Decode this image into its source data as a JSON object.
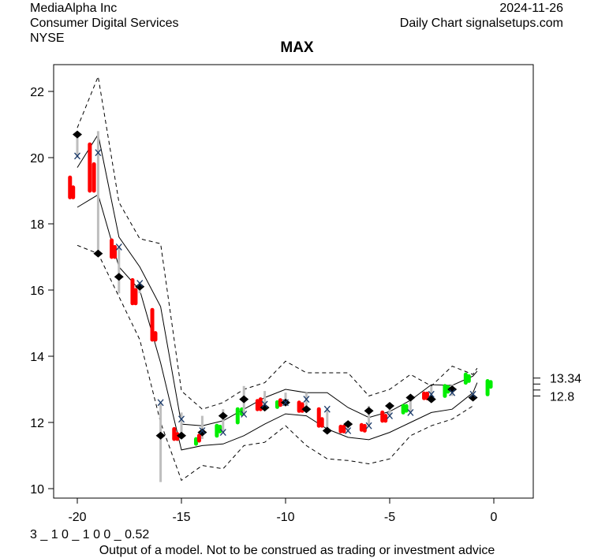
{
  "header": {
    "company": "MediaAlpha Inc",
    "sector": "Consumer Digital Services",
    "exchange": "NYSE",
    "date": "2024-11-26",
    "source": "Daily Chart signalsetups.com"
  },
  "footer": {
    "params": "3 _ 1 0 _ 1 0 0 _ 0.52",
    "disclaimer": "Output of a model. Not to be construed as trading or investment advice"
  },
  "chart_data": {
    "type": "line",
    "title": "MAX",
    "xlim": [
      -20.8,
      1.9
    ],
    "ylim": [
      9.7,
      23.2
    ],
    "xticks": [
      -20,
      -15,
      -10,
      -5,
      0
    ],
    "yticks": [
      10,
      12,
      14,
      16,
      18,
      20,
      22
    ],
    "right_labels": [
      "13.34",
      "12.8"
    ],
    "right_label_values": [
      13.34,
      12.8
    ],
    "right_tick_values": [
      13.34,
      13.16,
      12.98,
      12.8
    ],
    "colors": {
      "up": "#00ee00",
      "down": "#ff0000",
      "range": "#bebebe",
      "band": "#000000"
    },
    "bands": {
      "x": [
        -20,
        -19,
        -18,
        -17,
        -16,
        -15,
        -14,
        -13,
        -12,
        -11,
        -10,
        -9,
        -8,
        -7,
        -6,
        -5,
        -4,
        -3,
        -2,
        -1
      ],
      "upper_outer": [
        20.9,
        22.45,
        18.65,
        17.55,
        17.4,
        12.95,
        12.4,
        12.6,
        13.0,
        13.2,
        13.85,
        13.5,
        13.5,
        13.5,
        12.8,
        13.0,
        13.45,
        13.1,
        13.7,
        13.45
      ],
      "upper": [
        19.7,
        20.7,
        17.6,
        16.7,
        15.5,
        11.95,
        11.9,
        12.05,
        12.4,
        12.75,
        13.0,
        12.9,
        12.9,
        12.45,
        12.15,
        12.33,
        12.67,
        13.14,
        13.12,
        13.4
      ],
      "lower": [
        18.5,
        18.88,
        16.7,
        16.0,
        13.8,
        11.17,
        11.3,
        11.35,
        11.6,
        11.95,
        12.26,
        12.2,
        11.8,
        11.55,
        11.48,
        11.7,
        12.0,
        12.3,
        12.4,
        12.9
      ],
      "lower_outer": [
        17.35,
        17.1,
        15.8,
        14.5,
        12.0,
        10.25,
        10.7,
        10.6,
        11.3,
        11.4,
        11.9,
        11.3,
        10.9,
        10.85,
        10.75,
        10.9,
        11.6,
        11.9,
        12.1,
        12.5
      ],
      "extra_upper_outer_end": [
        -0.8,
        13.64
      ],
      "extra_upper_end": [
        -0.8,
        13.55
      ],
      "extra_lower_end": [
        -0.8,
        13.2
      ]
    },
    "signals": [
      {
        "x": -20,
        "hi": 20.7,
        "lo": 20.0,
        "diamond": 20.7,
        "mark": 20.05
      },
      {
        "x": -19,
        "hi": 20.8,
        "lo": 17.1,
        "diamond": 17.1,
        "mark": 20.15
      },
      {
        "x": -18,
        "hi": 17.3,
        "lo": 15.9,
        "diamond": 16.4,
        "mark": 17.3
      },
      {
        "x": -17,
        "hi": 16.25,
        "lo": 15.9,
        "diamond": 16.1,
        "mark": 16.2
      },
      {
        "x": -16,
        "hi": 12.6,
        "lo": 10.2,
        "diamond": 11.6,
        "mark": 12.6
      },
      {
        "x": -15,
        "hi": 12.3,
        "lo": 11.6,
        "diamond": 11.6,
        "mark": 12.1
      },
      {
        "x": -14,
        "hi": 12.2,
        "lo": 11.5,
        "diamond": 11.7,
        "mark": 11.75
      },
      {
        "x": -13,
        "hi": 12.4,
        "lo": 11.7,
        "diamond": 12.2,
        "mark": 11.7
      },
      {
        "x": -12,
        "hi": 13.1,
        "lo": 12.2,
        "diamond": 12.7,
        "mark": 12.25
      },
      {
        "x": -11,
        "hi": 12.95,
        "lo": 12.5,
        "diamond": 12.45,
        "mark": 12.55
      },
      {
        "x": -10,
        "hi": 12.9,
        "lo": 12.5,
        "diamond": 12.6,
        "mark": 12.6
      },
      {
        "x": -9,
        "hi": 12.9,
        "lo": 12.4,
        "diamond": 12.4,
        "mark": 12.7
      },
      {
        "x": -8,
        "hi": 12.4,
        "lo": 11.7,
        "diamond": 11.75,
        "mark": 12.4
      },
      {
        "x": -7,
        "hi": 12.0,
        "lo": 11.7,
        "diamond": 11.95,
        "mark": 11.75
      },
      {
        "x": -6,
        "hi": 12.5,
        "lo": 11.9,
        "diamond": 12.35,
        "mark": 11.9
      },
      {
        "x": -5,
        "hi": 12.6,
        "lo": 12.2,
        "diamond": 12.5,
        "mark": 12.2
      },
      {
        "x": -4,
        "hi": 12.85,
        "lo": 12.3,
        "diamond": 12.75,
        "mark": 12.3
      },
      {
        "x": -3,
        "hi": 13.1,
        "lo": 12.7,
        "diamond": 12.7,
        "mark": 12.85
      },
      {
        "x": -2,
        "hi": 13.15,
        "lo": 12.8,
        "diamond": 13.0,
        "mark": 12.9
      },
      {
        "x": -1,
        "hi": 12.9,
        "lo": 12.7,
        "diamond": 12.75,
        "mark": 12.85
      }
    ],
    "candles": [
      {
        "x": -20.35,
        "hi": 19.4,
        "lo": 18.8,
        "dir": "down"
      },
      {
        "x": -20.2,
        "hi": 19.1,
        "lo": 18.8,
        "dir": "down"
      },
      {
        "x": -19.4,
        "hi": 20.4,
        "lo": 19.0,
        "dir": "down"
      },
      {
        "x": -19.2,
        "hi": 19.8,
        "lo": 19.0,
        "dir": "down"
      },
      {
        "x": -18.35,
        "hi": 17.5,
        "lo": 17.0,
        "dir": "down"
      },
      {
        "x": -18.2,
        "hi": 17.3,
        "lo": 17.0,
        "dir": "down"
      },
      {
        "x": -17.35,
        "hi": 16.3,
        "lo": 15.6,
        "dir": "down"
      },
      {
        "x": -17.2,
        "hi": 16.0,
        "lo": 15.6,
        "dir": "down"
      },
      {
        "x": -16.4,
        "hi": 15.4,
        "lo": 14.5,
        "dir": "down"
      },
      {
        "x": -16.25,
        "hi": 14.7,
        "lo": 14.5,
        "dir": "down"
      },
      {
        "x": -15.35,
        "hi": 11.8,
        "lo": 11.5,
        "dir": "down"
      },
      {
        "x": -15.2,
        "hi": 11.65,
        "lo": 11.5,
        "dir": "down"
      },
      {
        "x": -14.3,
        "hi": 11.45,
        "lo": 11.4,
        "dir": "up"
      },
      {
        "x": -14.15,
        "hi": 11.6,
        "lo": 11.45,
        "dir": "down"
      },
      {
        "x": -13.3,
        "hi": 11.9,
        "lo": 11.6,
        "dir": "up"
      },
      {
        "x": -13.15,
        "hi": 11.85,
        "lo": 11.75,
        "dir": "up"
      },
      {
        "x": -12.3,
        "hi": 12.4,
        "lo": 12.0,
        "dir": "up"
      },
      {
        "x": -12.1,
        "hi": 12.35,
        "lo": 12.3,
        "dir": "up"
      },
      {
        "x": -11.35,
        "hi": 12.65,
        "lo": 12.4,
        "dir": "down"
      },
      {
        "x": -11.2,
        "hi": 12.7,
        "lo": 12.4,
        "dir": "down"
      },
      {
        "x": -10.4,
        "hi": 12.56,
        "lo": 12.52,
        "dir": "up"
      },
      {
        "x": -10.25,
        "hi": 12.65,
        "lo": 12.55,
        "dir": "down"
      },
      {
        "x": -9.35,
        "hi": 12.6,
        "lo": 12.35,
        "dir": "down"
      },
      {
        "x": -9.2,
        "hi": 12.55,
        "lo": 12.35,
        "dir": "down"
      },
      {
        "x": -8.4,
        "hi": 12.4,
        "lo": 11.9,
        "dir": "down"
      },
      {
        "x": -8.25,
        "hi": 12.1,
        "lo": 11.9,
        "dir": "down"
      },
      {
        "x": -7.35,
        "hi": 11.85,
        "lo": 11.75,
        "dir": "down"
      },
      {
        "x": -7.2,
        "hi": 11.85,
        "lo": 11.75,
        "dir": "down"
      },
      {
        "x": -6.35,
        "hi": 11.9,
        "lo": 11.8,
        "dir": "down"
      },
      {
        "x": -6.2,
        "hi": 11.85,
        "lo": 11.8,
        "dir": "down"
      },
      {
        "x": -5.35,
        "hi": 12.3,
        "lo": 12.05,
        "dir": "down"
      },
      {
        "x": -5.2,
        "hi": 12.2,
        "lo": 12.05,
        "dir": "down"
      },
      {
        "x": -4.35,
        "hi": 12.5,
        "lo": 12.3,
        "dir": "up"
      },
      {
        "x": -4.2,
        "hi": 12.45,
        "lo": 12.4,
        "dir": "up"
      },
      {
        "x": -3.35,
        "hi": 12.83,
        "lo": 12.78,
        "dir": "down"
      },
      {
        "x": -3.2,
        "hi": 12.85,
        "lo": 12.75,
        "dir": "down"
      },
      {
        "x": -2.35,
        "hi": 13.1,
        "lo": 12.8,
        "dir": "up"
      },
      {
        "x": -2.2,
        "hi": 13.05,
        "lo": 12.95,
        "dir": "up"
      },
      {
        "x": -1.35,
        "hi": 13.45,
        "lo": 13.2,
        "dir": "up"
      },
      {
        "x": -1.2,
        "hi": 13.35,
        "lo": 13.3,
        "dir": "up"
      },
      {
        "x": -0.3,
        "hi": 13.25,
        "lo": 12.85,
        "dir": "up"
      },
      {
        "x": -0.15,
        "hi": 13.2,
        "lo": 13.1,
        "dir": "up"
      }
    ]
  }
}
